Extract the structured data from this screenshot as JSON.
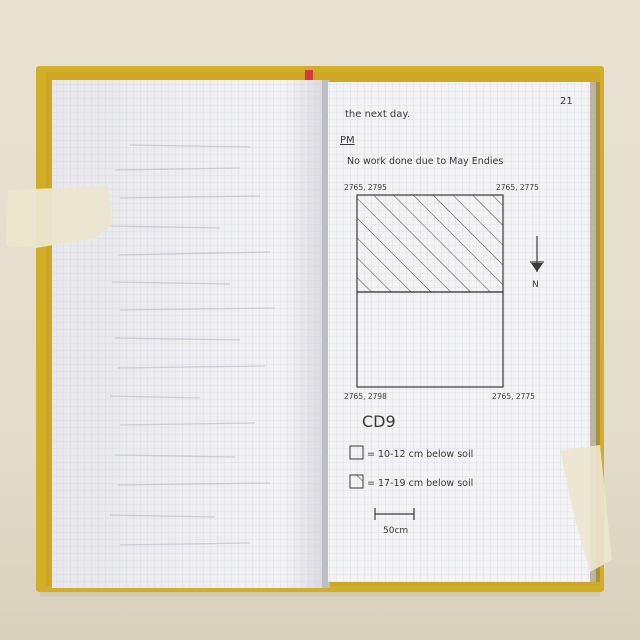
{
  "notebook": {
    "page_number": "21",
    "heading": "the next day.",
    "time_label": "PM",
    "note": "No work done due to May Endies",
    "corner_coords": {
      "top_left": "2765, 2795",
      "top_right": "2765, 2775",
      "bottom_left": "2765, 2798",
      "bottom_right": "2765, 2775"
    },
    "north_label": "N",
    "unit_id": "CD9",
    "legend": [
      {
        "pattern": "plain",
        "text": "= 10-12 cm below soil"
      },
      {
        "pattern": "hatched",
        "text": "= 17-19 cm below soil"
      }
    ],
    "scale_label": "50cm"
  },
  "colors": {
    "cover": "#d4b12a",
    "paper": "#f4f4f6",
    "grid": "#c9cfd9",
    "ink": "#3a3a3a",
    "tape": "#ebe6d0"
  }
}
